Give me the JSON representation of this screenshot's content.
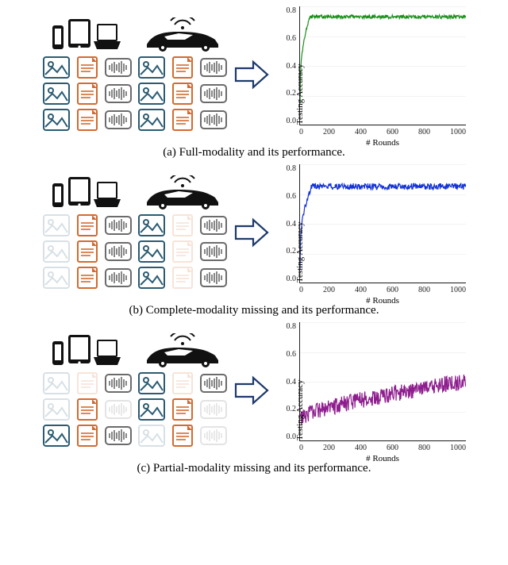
{
  "modality_colors": {
    "image": "#2b5b72",
    "text": "#d46a2e",
    "audio": "#6b6b6b"
  },
  "panels": [
    {
      "id": "a",
      "caption": "(a) Full-modality and its performance.",
      "clients": [
        {
          "device": "phone-laptop",
          "rows": [
            [
              1,
              1,
              1
            ],
            [
              1,
              1,
              1
            ],
            [
              1,
              1,
              1
            ]
          ]
        },
        {
          "device": "car",
          "rows": [
            [
              1,
              1,
              1
            ],
            [
              1,
              1,
              1
            ],
            [
              1,
              1,
              1
            ]
          ]
        }
      ],
      "chart": {
        "line_color": "#1a8f1a",
        "ylabel": "Testing Accuracy",
        "xlabel": "# Rounds",
        "xlim": [
          0,
          1000
        ],
        "ylim": [
          0,
          0.8
        ],
        "xticks": [
          0,
          200,
          400,
          600,
          800,
          1000
        ],
        "yticks": [
          0.0,
          0.2,
          0.4,
          0.6,
          0.8
        ],
        "series_type": "noisy-plateau",
        "start_y": 0.15,
        "rise_x": 60,
        "plateau_y": 0.73,
        "noise": 0.012
      }
    },
    {
      "id": "b",
      "caption": "(b) Complete-modality missing and its performance.",
      "clients": [
        {
          "device": "phone-laptop",
          "rows": [
            [
              0,
              1,
              1
            ],
            [
              0,
              1,
              1
            ],
            [
              0,
              1,
              1
            ]
          ]
        },
        {
          "device": "car",
          "rows": [
            [
              1,
              0,
              1
            ],
            [
              1,
              0,
              1
            ],
            [
              1,
              0,
              1
            ]
          ]
        }
      ],
      "chart": {
        "line_color": "#1432d6",
        "ylabel": "Testing Accuracy",
        "xlabel": "# Rounds",
        "xlim": [
          0,
          1000
        ],
        "ylim": [
          0,
          0.8
        ],
        "xticks": [
          0,
          200,
          400,
          600,
          800,
          1000
        ],
        "yticks": [
          0.0,
          0.2,
          0.4,
          0.6,
          0.8
        ],
        "series_type": "noisy-plateau",
        "start_y": 0.1,
        "rise_x": 70,
        "plateau_y": 0.65,
        "noise": 0.022
      }
    },
    {
      "id": "c",
      "caption": "(c) Partial-modality missing and its performance.",
      "clients": [
        {
          "device": "phone-laptop",
          "rows": [
            [
              0,
              0,
              1
            ],
            [
              0,
              1,
              0
            ],
            [
              1,
              1,
              1
            ]
          ]
        },
        {
          "device": "car",
          "rows": [
            [
              1,
              0,
              1
            ],
            [
              1,
              1,
              0
            ],
            [
              0,
              1,
              0
            ]
          ]
        }
      ],
      "chart": {
        "line_color": "#8e1e8e",
        "ylabel": "Testing Accuracy",
        "xlabel": "# Rounds",
        "xlim": [
          0,
          1000
        ],
        "ylim": [
          0,
          0.8
        ],
        "xticks": [
          0,
          200,
          400,
          600,
          800,
          1000
        ],
        "yticks": [
          0.0,
          0.2,
          0.4,
          0.6,
          0.8
        ],
        "series_type": "noisy-rise",
        "start_y": 0.15,
        "rise_x": 1000,
        "plateau_y": 0.4,
        "noise": 0.055
      }
    }
  ]
}
